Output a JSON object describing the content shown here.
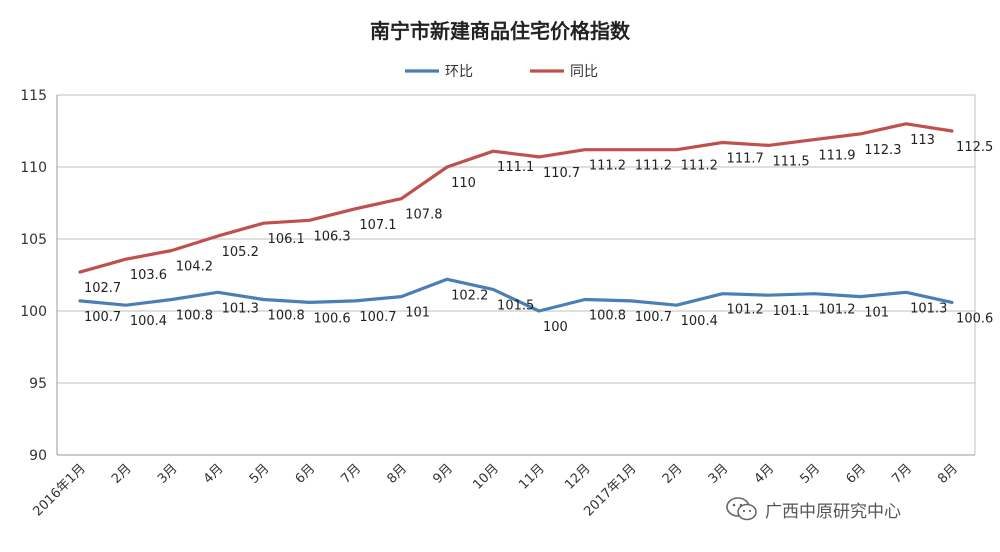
{
  "chart_data": {
    "type": "line",
    "title": "南宁市新建商品住宅价格指数",
    "categories": [
      "2016年1月",
      "2月",
      "3月",
      "4月",
      "5月",
      "6月",
      "7月",
      "8月",
      "9月",
      "10月",
      "11月",
      "12月",
      "2017年1月",
      "2月",
      "3月",
      "4月",
      "5月",
      "6月",
      "7月",
      "8月"
    ],
    "series": [
      {
        "name": "环比",
        "color": "#4a7fb5",
        "values": [
          100.7,
          100.4,
          100.8,
          101.3,
          100.8,
          100.6,
          100.7,
          101,
          102.2,
          101.5,
          100,
          100.8,
          100.7,
          100.4,
          101.2,
          101.1,
          101.2,
          101,
          101.3,
          100.6
        ],
        "labels": [
          "100.7",
          "100.4",
          "100.8",
          "101.3",
          "100.8",
          "100.6",
          "100.7",
          "101",
          "102.2",
          "101.5",
          "100",
          "100.8",
          "100.7",
          "100.4",
          "101.2",
          "101.1",
          "101.2",
          "101",
          "101.3",
          "100.6"
        ]
      },
      {
        "name": "同比",
        "color": "#c0504d",
        "values": [
          102.7,
          103.6,
          104.2,
          105.2,
          106.1,
          106.3,
          107.1,
          107.8,
          110,
          111.1,
          110.7,
          111.2,
          111.2,
          111.2,
          111.7,
          111.5,
          111.9,
          112.3,
          113,
          112.5
        ],
        "labels": [
          "102.7",
          "103.6",
          "104.2",
          "105.2",
          "106.1",
          "106.3",
          "107.1",
          "107.8",
          "110",
          "111.1",
          "110.7",
          "111.2",
          "111.2",
          "111.2",
          "111.7",
          "111.5",
          "111.9",
          "112.3",
          "113",
          "112.5"
        ]
      }
    ],
    "ylim": [
      90,
      115
    ],
    "yticks": [
      "90",
      "95",
      "100",
      "105",
      "110",
      "115"
    ],
    "grid": true,
    "legend": "top-center"
  },
  "watermark": {
    "text": "广西中原研究中心",
    "icon": "wechat-icon"
  }
}
